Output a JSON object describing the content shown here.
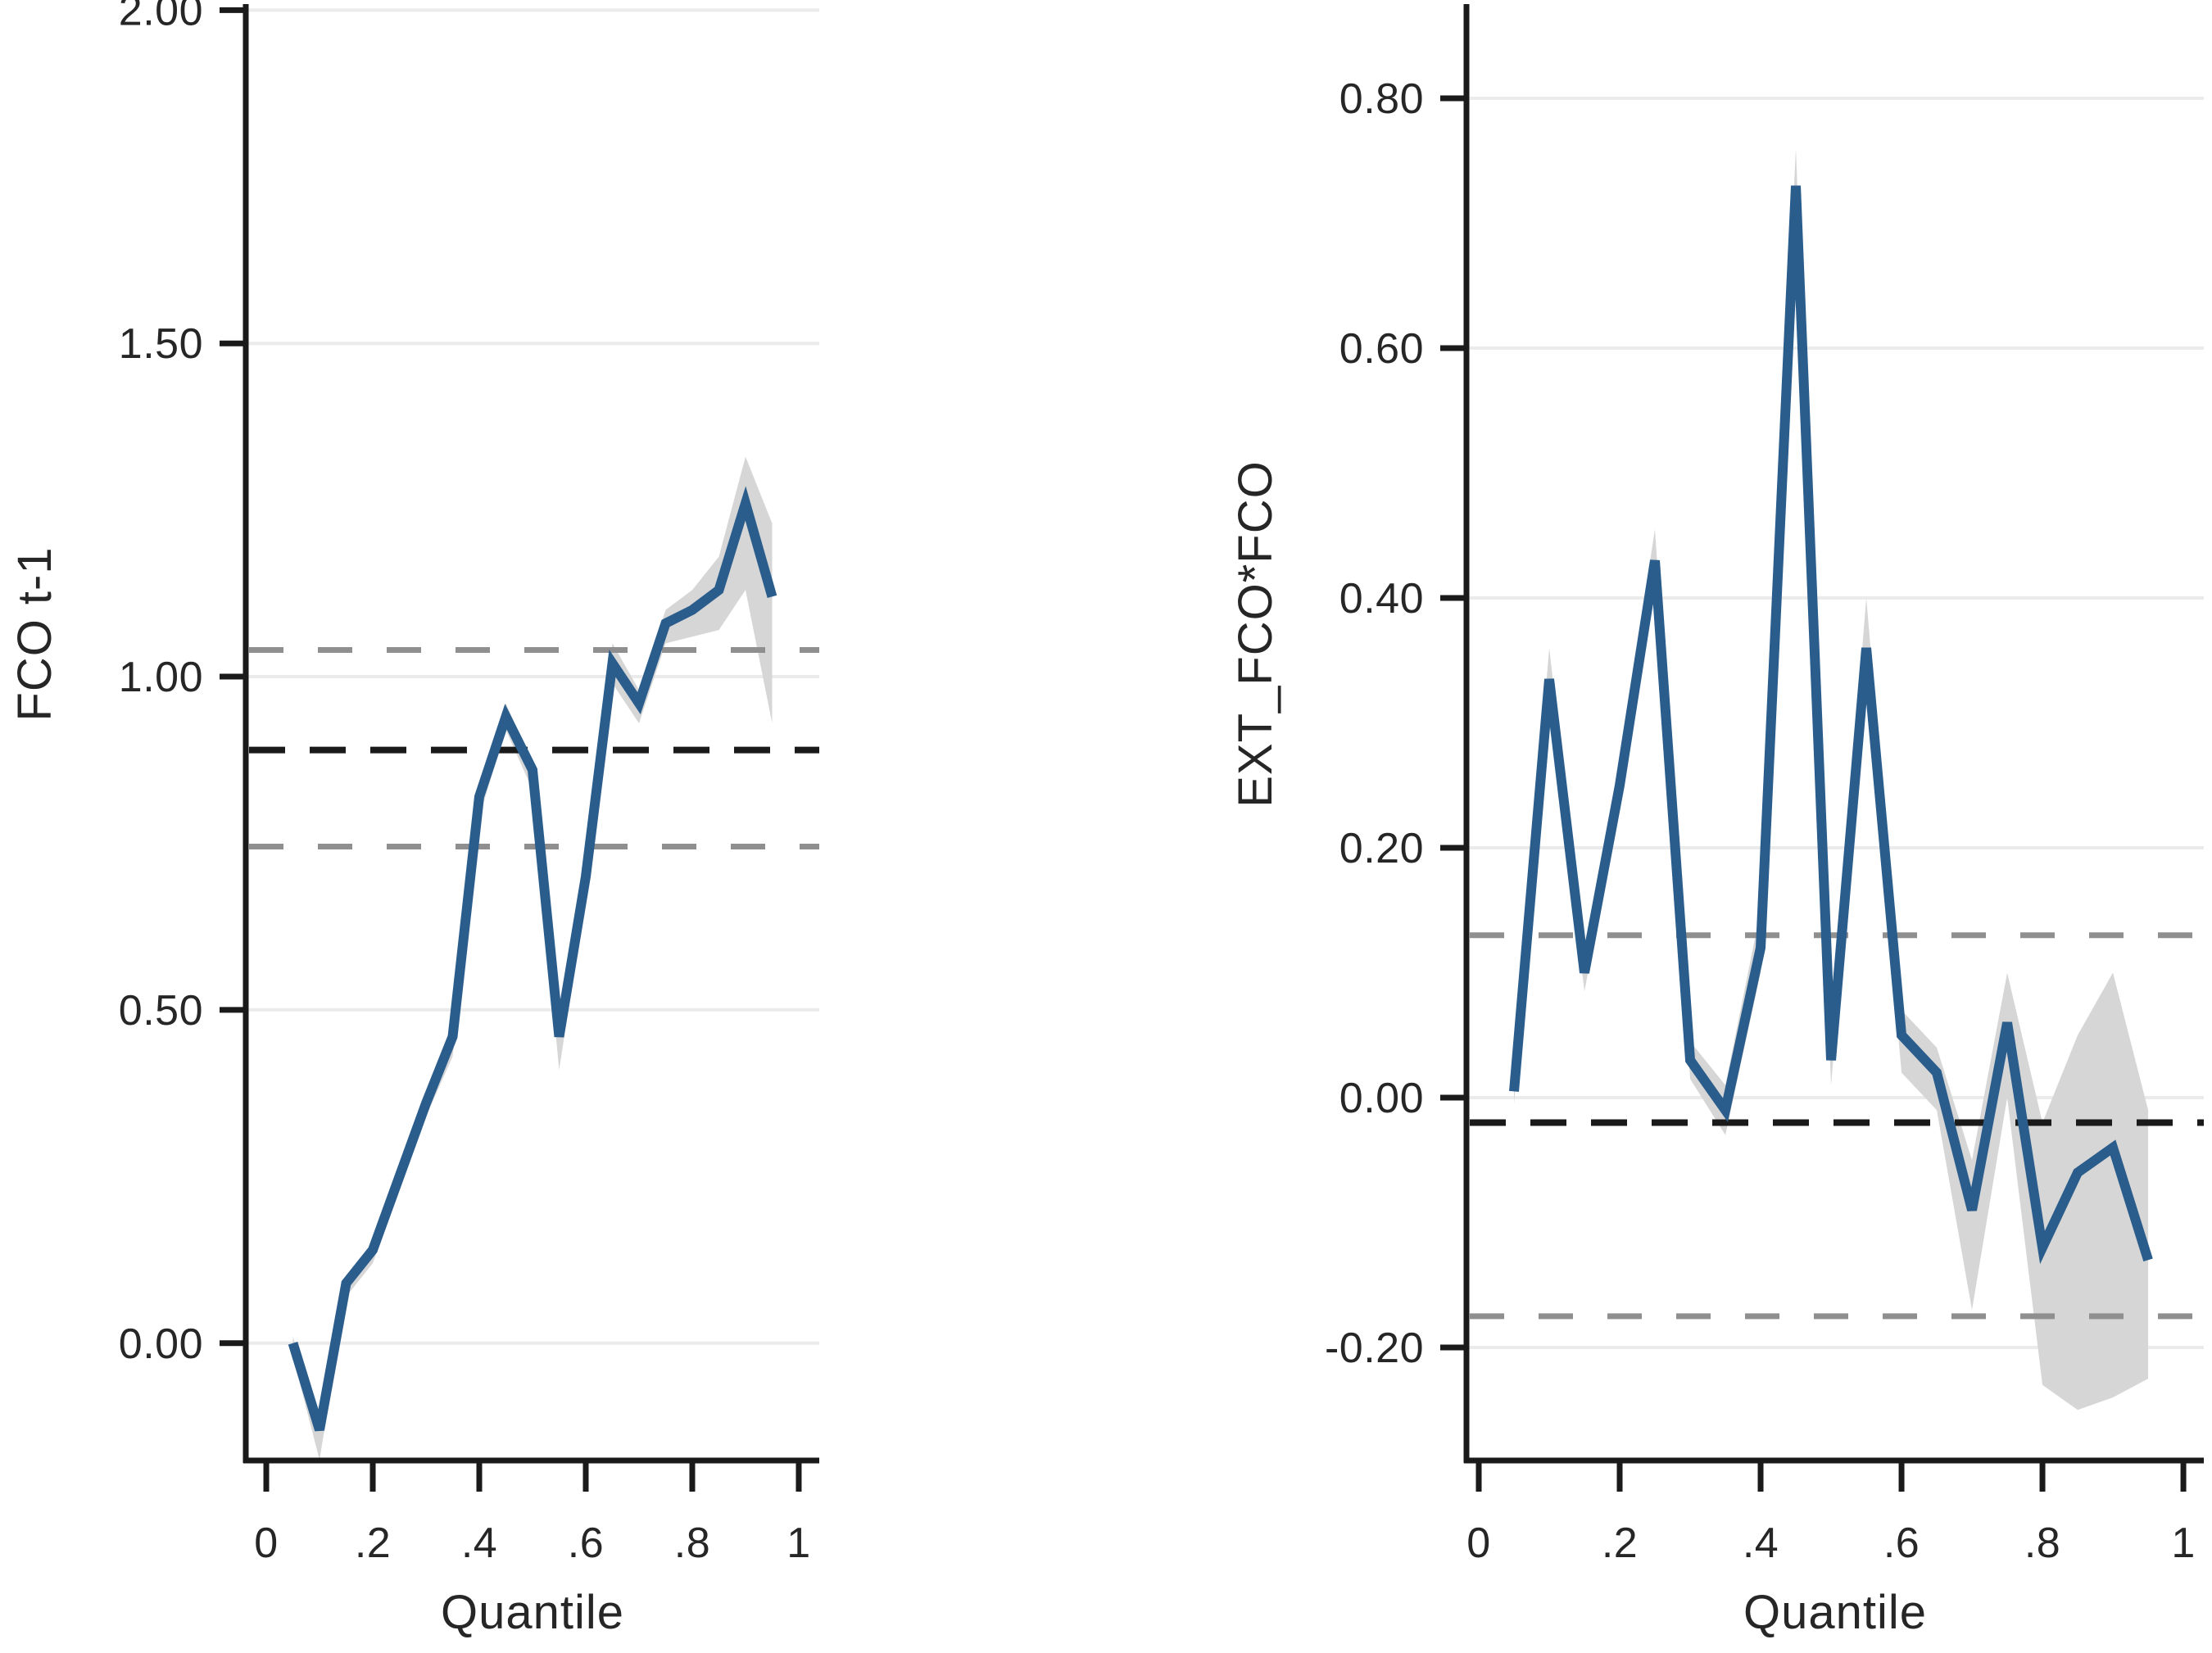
{
  "figure": {
    "background": "#ffffff",
    "description": "Two-panel quantile regression coefficient plot with 95% confidence bands and OLS reference lines"
  },
  "colors": {
    "line": "#2b5d8c",
    "band": "#d6d6d6",
    "grid": "#ebebeb",
    "axis": "#1a1a1a",
    "ols_dash": "#1a1a1a",
    "ci_dash": "#8f8f8f",
    "text": "#262626"
  },
  "chart_data": [
    {
      "type": "line",
      "panel": "left",
      "title": "",
      "ylabel": "FCO t-1",
      "xlabel": "Quantile",
      "grid": "horizontal",
      "legend_position": "none",
      "x": [
        0.05,
        0.1,
        0.15,
        0.2,
        0.25,
        0.3,
        0.35,
        0.4,
        0.45,
        0.5,
        0.55,
        0.6,
        0.65,
        0.7,
        0.75,
        0.8,
        0.85,
        0.9,
        0.95
      ],
      "series": [
        {
          "name": "quantile-estimate",
          "values": [
            0.0,
            -0.13,
            0.09,
            0.14,
            0.25,
            0.36,
            0.46,
            0.82,
            0.94,
            0.86,
            0.46,
            0.7,
            1.02,
            0.96,
            1.08,
            1.1,
            1.13,
            1.26,
            1.12
          ]
        }
      ],
      "band": {
        "name": "95% confidence band",
        "upper": [
          0.01,
          -0.115,
          0.1,
          0.15,
          0.26,
          0.37,
          0.47,
          0.83,
          0.96,
          0.87,
          0.48,
          0.72,
          1.05,
          0.98,
          1.1,
          1.13,
          1.18,
          1.33,
          1.23
        ],
        "lower": [
          -0.02,
          -0.175,
          0.07,
          0.12,
          0.23,
          0.34,
          0.43,
          0.79,
          0.92,
          0.83,
          0.41,
          0.67,
          0.99,
          0.93,
          1.05,
          1.06,
          1.07,
          1.13,
          0.93
        ]
      },
      "ref_lines": {
        "ols_estimate": 0.89,
        "ols_ci_upper": 1.04,
        "ols_ci_lower": 0.745
      },
      "yticks": [
        2.0,
        1.5,
        1.0,
        0.5,
        0.0
      ],
      "ytick_labels": [
        "2.00",
        "1.50",
        "1.00",
        "0.50",
        "0.00"
      ],
      "xticks": [
        0,
        0.2,
        0.4,
        0.6,
        0.8,
        1
      ],
      "xtick_labels": [
        "0",
        ".2",
        ".4",
        ".6",
        ".8",
        "1"
      ],
      "ylim": [
        -0.176,
        2.009
      ],
      "xlim": [
        -0.0385,
        1.0385
      ]
    },
    {
      "type": "line",
      "panel": "right",
      "title": "",
      "ylabel": "EXT_FCO*FCO",
      "xlabel": "Quantile",
      "grid": "horizontal",
      "legend_position": "none",
      "x": [
        0.05,
        0.1,
        0.15,
        0.2,
        0.25,
        0.3,
        0.35,
        0.4,
        0.45,
        0.5,
        0.55,
        0.6,
        0.65,
        0.7,
        0.75,
        0.8,
        0.85,
        0.9,
        0.95
      ],
      "series": [
        {
          "name": "quantile-estimate",
          "values": [
            0.005,
            0.335,
            0.1,
            0.25,
            0.43,
            0.03,
            -0.01,
            0.12,
            0.73,
            0.03,
            0.36,
            0.05,
            0.02,
            -0.09,
            0.06,
            -0.12,
            -0.06,
            -0.04,
            -0.13
          ]
        }
      ],
      "band": {
        "name": "95% confidence band",
        "upper": [
          0.02,
          0.36,
          0.115,
          0.27,
          0.455,
          0.045,
          0.01,
          0.15,
          0.76,
          0.05,
          0.4,
          0.07,
          0.04,
          -0.05,
          0.1,
          -0.02,
          0.05,
          0.1,
          -0.01
        ],
        "lower": [
          -0.005,
          0.32,
          0.085,
          0.235,
          0.415,
          0.015,
          -0.03,
          0.1,
          0.71,
          0.01,
          0.34,
          0.02,
          -0.01,
          -0.17,
          0.0,
          -0.23,
          -0.25,
          -0.24,
          -0.225
        ]
      },
      "ref_lines": {
        "ols_estimate": -0.02,
        "ols_ci_upper": 0.13,
        "ols_ci_lower": -0.175
      },
      "yticks": [
        0.8,
        0.6,
        0.4,
        0.2,
        0.0,
        -0.2
      ],
      "ytick_labels": [
        "0.80",
        "0.60",
        "0.40",
        "0.20",
        "0.00",
        "-0.20"
      ],
      "xticks": [
        0,
        0.2,
        0.4,
        0.6,
        0.8,
        1
      ],
      "xtick_labels": [
        "0",
        ".2",
        ".4",
        ".6",
        ".8",
        "1"
      ],
      "ylim": [
        -0.2905,
        0.8754
      ],
      "xlim": [
        -0.01744,
        1.029
      ]
    }
  ]
}
